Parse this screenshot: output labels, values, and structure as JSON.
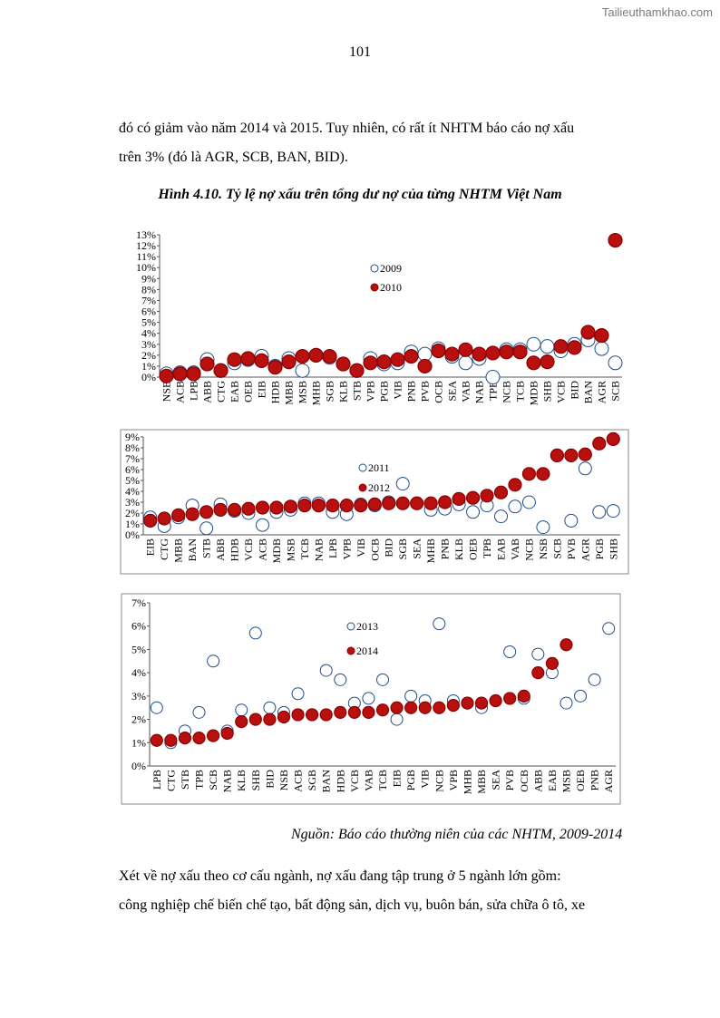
{
  "watermark": "Tailieuthamkhao.com",
  "page_number": "101",
  "paragraph_top": {
    "line1": "đó có giảm vào năm 2014 và 2015. Tuy nhiên, có rất ít NHTM báo cáo nợ xấu",
    "line2": "trên 3% (đó là AGR, SCB, BAN, BID)."
  },
  "figure_caption": "Hình 4.10. Tỷ lệ nợ xấu trên tổng dư nợ của từng NHTM Việt Nam",
  "source_note": "Nguồn: Báo cáo thường niên của các NHTM, 2009-2014",
  "paragraph_bottom": {
    "line1": "Xét về nợ xấu theo cơ cấu ngành, nợ xấu đang tập trung ở 5 ngành lớn gồm:",
    "line2": "công nghiệp chế biến chế tạo, bất động sản, dịch vụ, buôn bán, sửa chữa ô tô, xe"
  },
  "colors": {
    "filled": "#b80f0f",
    "filled_stroke": "#8c0000",
    "hollow": "#1f4e8c"
  },
  "chart_data": [
    {
      "type": "scatter",
      "title": "",
      "ylim": [
        0,
        13
      ],
      "yticks": [
        0,
        1,
        2,
        3,
        4,
        5,
        6,
        7,
        8,
        9,
        10,
        11,
        12,
        13
      ],
      "ytick_labels": [
        "0%",
        "1%",
        "2%",
        "3%",
        "4%",
        "5%",
        "6%",
        "7%",
        "8%",
        "9%",
        "10%",
        "11%",
        "12%",
        "13%"
      ],
      "categories": [
        "NSB",
        "ACB",
        "LPB",
        "ABB",
        "CTG",
        "EAB",
        "OEB",
        "EIB",
        "HDB",
        "MBB",
        "MSB",
        "MHB",
        "SGB",
        "KLB",
        "STB",
        "VPB",
        "PGB",
        "VIB",
        "PNB",
        "PVB",
        "OCB",
        "SEA",
        "VAB",
        "NAB",
        "TPB",
        "NCB",
        "TCB",
        "MDB",
        "SHB",
        "VCB",
        "BID",
        "BAN",
        "AGR",
        "SCB"
      ],
      "series": [
        {
          "name": "2009",
          "style": "hollow",
          "values": [
            0.3,
            0.4,
            0.4,
            1.6,
            0.6,
            1.3,
            1.6,
            1.9,
            1.0,
            1.7,
            0.6,
            2.0,
            1.8,
            1.2,
            0.6,
            1.7,
            1.2,
            1.3,
            2.3,
            2.1,
            2.6,
            1.9,
            1.3,
            1.7,
            0.0,
            2.5,
            2.5,
            3.0,
            2.8,
            2.4,
            3.0,
            3.4,
            2.6,
            1.3
          ]
        },
        {
          "name": "2010",
          "style": "filled",
          "values": [
            0.1,
            0.3,
            0.3,
            1.2,
            0.6,
            1.6,
            1.7,
            1.5,
            0.9,
            1.4,
            1.9,
            2.0,
            1.9,
            1.2,
            0.6,
            1.3,
            1.4,
            1.6,
            1.9,
            1.0,
            2.4,
            2.1,
            2.5,
            2.1,
            2.2,
            2.3,
            2.3,
            1.3,
            1.4,
            2.8,
            2.7,
            4.1,
            3.8,
            12.5
          ]
        }
      ]
    },
    {
      "type": "scatter",
      "title": "",
      "ylim": [
        0,
        9
      ],
      "yticks": [
        0,
        1,
        2,
        3,
        4,
        5,
        6,
        7,
        8,
        9
      ],
      "ytick_labels": [
        "0%",
        "1%",
        "2%",
        "3%",
        "4%",
        "5%",
        "6%",
        "7%",
        "8%",
        "9%"
      ],
      "categories": [
        "EIB",
        "CTG",
        "MBB",
        "BAN",
        "STB",
        "ABB",
        "HDB",
        "VCB",
        "ACB",
        "MDB",
        "MSB",
        "TCB",
        "NAB",
        "LPB",
        "VPB",
        "VIB",
        "OCB",
        "BID",
        "SGB",
        "SEA",
        "MHB",
        "PNB",
        "KLB",
        "OEB",
        "TPB",
        "EAB",
        "VAB",
        "NCB",
        "NSB",
        "SCB",
        "PVB",
        "AGR",
        "PGB",
        "SHB"
      ],
      "series": [
        {
          "name": "2011",
          "style": "hollow",
          "values": [
            1.6,
            0.8,
            1.6,
            2.7,
            0.6,
            2.8,
            2.2,
            2.0,
            0.9,
            2.1,
            2.3,
            2.9,
            2.9,
            2.1,
            1.9,
            2.8,
            2.7,
            3.0,
            4.7,
            2.9,
            2.3,
            2.4,
            2.8,
            2.1,
            2.7,
            1.7,
            2.6,
            3.0,
            0.7,
            7.3,
            1.3,
            6.1,
            2.1,
            2.2
          ]
        },
        {
          "name": "2012",
          "style": "filled",
          "values": [
            1.3,
            1.5,
            1.8,
            1.9,
            2.1,
            2.3,
            2.3,
            2.4,
            2.5,
            2.5,
            2.6,
            2.7,
            2.7,
            2.7,
            2.7,
            2.7,
            2.8,
            2.9,
            2.9,
            2.9,
            2.9,
            3.0,
            3.3,
            3.4,
            3.6,
            3.9,
            4.6,
            5.6,
            5.6,
            7.3,
            7.3,
            7.4,
            8.4,
            8.8
          ]
        }
      ]
    },
    {
      "type": "scatter",
      "title": "",
      "ylim": [
        0,
        7
      ],
      "yticks": [
        0,
        1,
        2,
        3,
        4,
        5,
        6,
        7
      ],
      "ytick_labels": [
        "0%",
        "1%",
        "2%",
        "3%",
        "4%",
        "5%",
        "6%",
        "7%"
      ],
      "categories": [
        "LPB",
        "CTG",
        "STB",
        "TPB",
        "SCB",
        "NAB",
        "KLB",
        "SHB",
        "BID",
        "NSB",
        "ACB",
        "SGB",
        "BAN",
        "HDB",
        "VCB",
        "VAB",
        "TCB",
        "EIB",
        "PGB",
        "VIB",
        "NCB",
        "VPB",
        "MHB",
        "MBB",
        "SEA",
        "PVB",
        "OCB",
        "ABB",
        "EAB",
        "MSB",
        "OEB",
        "PNB",
        "AGR"
      ],
      "series": [
        {
          "name": "2013",
          "style": "hollow",
          "values": [
            2.5,
            1.0,
            1.5,
            2.3,
            4.5,
            1.5,
            2.4,
            5.7,
            2.5,
            2.3,
            3.1,
            2.2,
            4.1,
            3.7,
            2.7,
            2.9,
            3.7,
            2.0,
            3.0,
            2.8,
            6.1,
            2.8,
            2.7,
            2.5,
            2.8,
            4.9,
            2.9,
            4.8,
            4.0,
            2.7,
            3.0,
            3.7,
            5.9
          ]
        },
        {
          "name": "2014",
          "style": "filled",
          "values": [
            1.1,
            1.1,
            1.2,
            1.2,
            1.3,
            1.4,
            1.9,
            2.0,
            2.0,
            2.1,
            2.2,
            2.2,
            2.2,
            2.3,
            2.3,
            2.3,
            2.4,
            2.5,
            2.5,
            2.5,
            2.5,
            2.6,
            2.7,
            2.7,
            2.8,
            2.9,
            3.0,
            4.0,
            4.4,
            5.2,
            null,
            null,
            null
          ]
        }
      ]
    }
  ]
}
